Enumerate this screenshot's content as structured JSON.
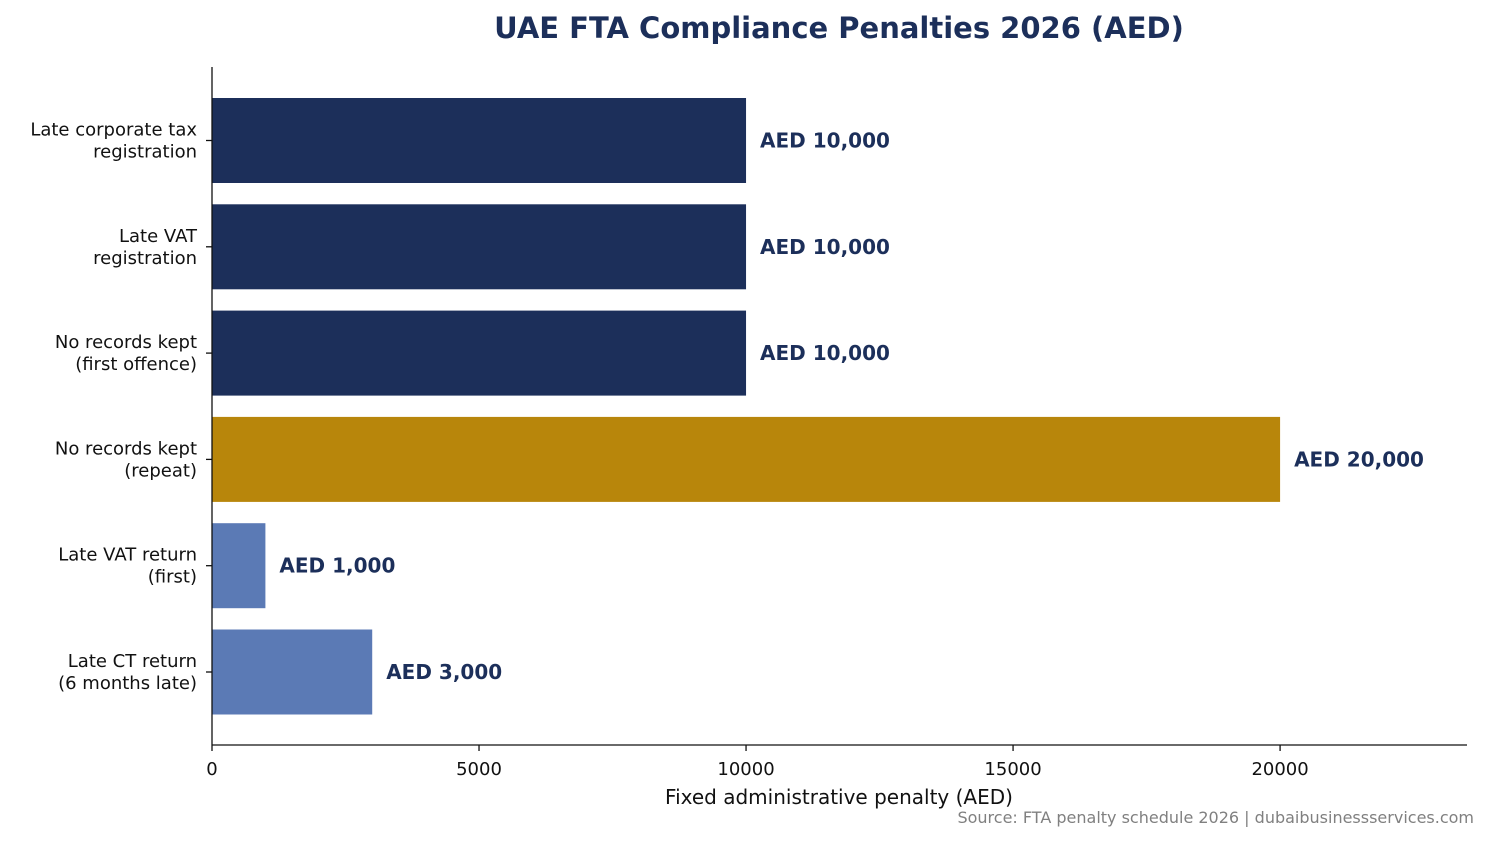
{
  "chart_data": {
    "type": "bar",
    "orientation": "horizontal",
    "title": "UAE FTA Compliance Penalties 2026 (AED)",
    "xlabel": "Fixed administrative penalty (AED)",
    "ylabel": "",
    "xlim": [
      0,
      23500
    ],
    "xticks": [
      "0",
      "5000",
      "10000",
      "15000",
      "20000"
    ],
    "xtick_values": [
      0,
      5000,
      10000,
      15000,
      20000
    ],
    "grid": false,
    "categories": [
      [
        "Late corporate tax",
        "registration"
      ],
      [
        "Late VAT",
        "registration"
      ],
      [
        "No records kept",
        "(first offence)"
      ],
      [
        "No records kept",
        "(repeat)"
      ],
      [
        "Late VAT return",
        "(first)"
      ],
      [
        "Late CT return",
        "(6 months late)"
      ]
    ],
    "values": [
      10000,
      10000,
      10000,
      20000,
      1000,
      3000
    ],
    "value_labels": [
      "AED 10,000",
      "AED 10,000",
      "AED 10,000",
      "AED 20,000",
      "AED 1,000",
      "AED 3,000"
    ],
    "bar_colors": [
      "#1c2f5a",
      "#1c2f5a",
      "#1c2f5a",
      "#b8860b",
      "#5b7ab5",
      "#5b7ab5"
    ],
    "source": "Source: FTA penalty schedule 2026 | dubaibusinessservices.com"
  }
}
